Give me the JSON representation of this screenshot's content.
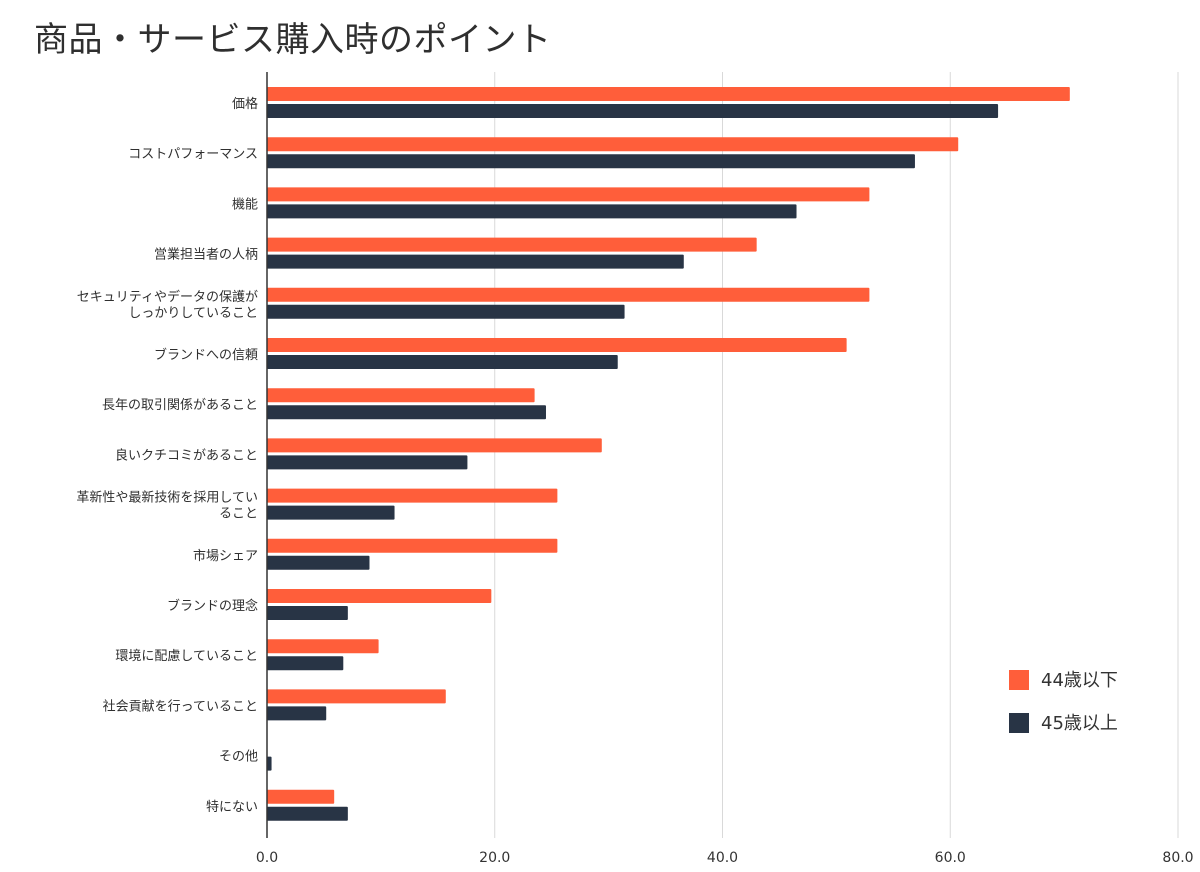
{
  "chart_data": {
    "type": "bar",
    "orientation": "horizontal",
    "title": "商品・サービス購入時のポイント",
    "xlabel": "",
    "ylabel": "",
    "xlim": [
      0,
      80
    ],
    "x_ticks": [
      "0.0",
      "20.0",
      "40.0",
      "60.0",
      "80.0"
    ],
    "grid": true,
    "legend_position": "bottom-right",
    "categories": [
      [
        "価格"
      ],
      [
        "コストパフォーマンス"
      ],
      [
        "機能"
      ],
      [
        "営業担当者の人柄"
      ],
      [
        "セキュリティやデータの保護が",
        "しっかりしていること"
      ],
      [
        "ブランドへの信頼"
      ],
      [
        "長年の取引関係があること"
      ],
      [
        "良いクチコミがあること"
      ],
      [
        "革新性や最新技術を採用してい",
        "ること"
      ],
      [
        "市場シェア"
      ],
      [
        "ブランドの理念"
      ],
      [
        "環境に配慮していること"
      ],
      [
        "社会貢献を行っていること"
      ],
      [
        "その他"
      ],
      [
        "特にない"
      ]
    ],
    "series": [
      {
        "name": "44歳以下",
        "color": "#ff5e3a",
        "values": [
          70.5,
          60.7,
          52.9,
          43.0,
          52.9,
          50.9,
          23.5,
          29.4,
          25.5,
          25.5,
          19.7,
          9.8,
          15.7,
          0.0,
          5.9
        ]
      },
      {
        "name": "45歳以上",
        "color": "#283445",
        "values": [
          64.2,
          56.9,
          46.5,
          36.6,
          31.4,
          30.8,
          24.5,
          17.6,
          11.2,
          9.0,
          7.1,
          6.7,
          5.2,
          0.4,
          7.1
        ]
      }
    ]
  }
}
